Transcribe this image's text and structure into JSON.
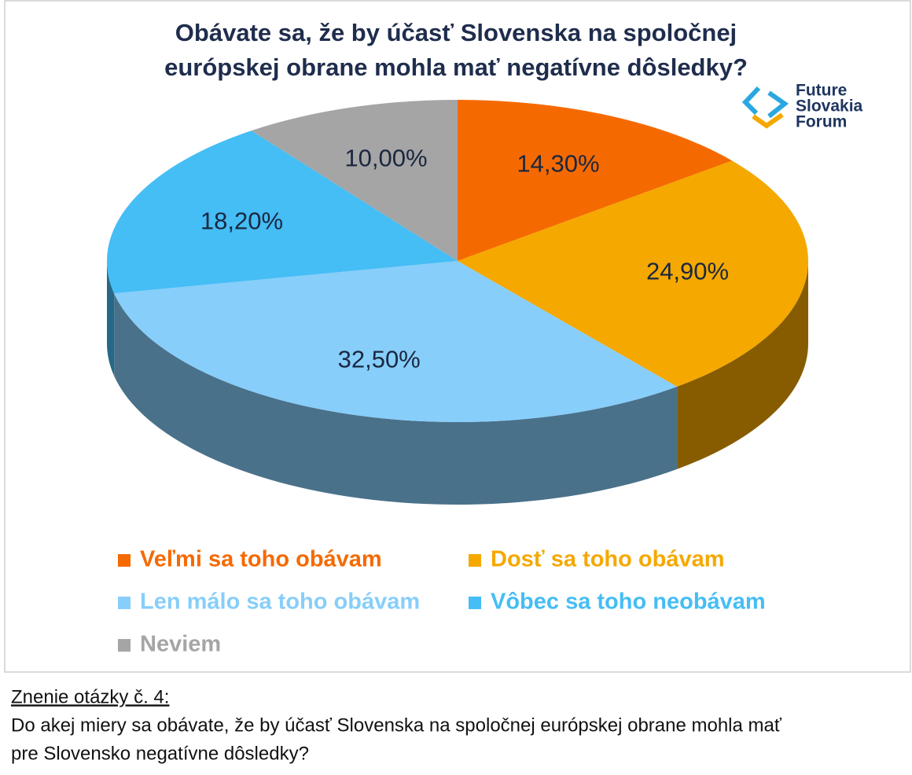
{
  "chart_data": {
    "type": "pie",
    "title": [
      "Obávate sa, že by účasť Slovenska na spoločnej",
      "európskej obrane mohla mať negatívne dôsledky?"
    ],
    "categories": [
      "Veľmi sa toho obávam",
      "Dosť sa toho obávam",
      "Len málo sa toho obávam",
      "Vôbec sa toho neobávam",
      "Neviem"
    ],
    "values": [
      14.3,
      24.9,
      32.5,
      18.2,
      10.0
    ],
    "value_labels": [
      "14,30%",
      "24,90%",
      "32,50%",
      "18,20%",
      "10,00%"
    ],
    "colors": [
      "#f56a00",
      "#f5a800",
      "#87cefa",
      "#45bdf5",
      "#a5a5a5"
    ]
  },
  "logo": [
    "Future",
    "Slovakia",
    "Forum"
  ],
  "footnote": {
    "heading": "Znenie otázky č. 4:",
    "lines": [
      "Do akej miery sa obávate, že by účasť Slovenska na spoločnej európskej obrane mohla mať",
      "pre Slovensko negatívne dôsledky?"
    ]
  }
}
